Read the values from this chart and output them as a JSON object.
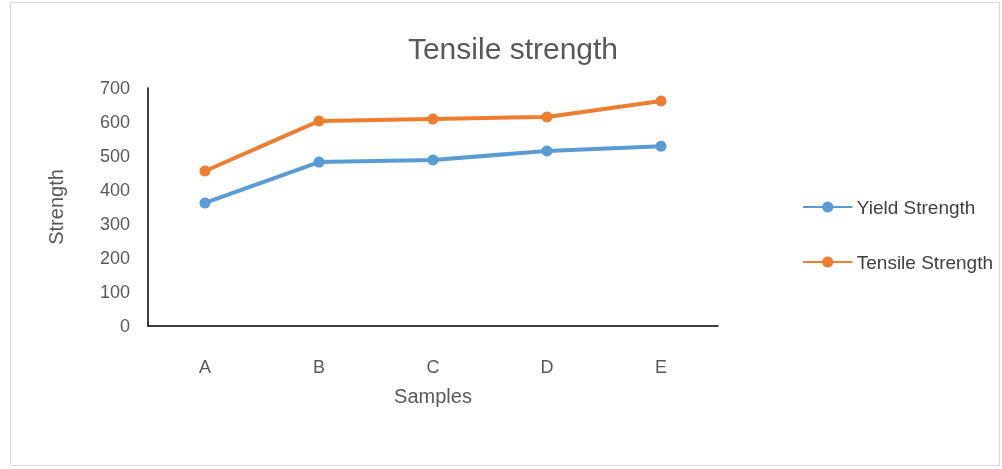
{
  "chart_data": {
    "type": "line",
    "title": "Tensile strength",
    "xlabel": "Samples",
    "ylabel": "Strength",
    "categories": [
      "A",
      "B",
      "C",
      "D",
      "E"
    ],
    "series": [
      {
        "name": "Yield Strength",
        "color": "#5b9bd5",
        "values": [
          362,
          482,
          488,
          515,
          529
        ]
      },
      {
        "name": "Tensile Strength",
        "color": "#ed7d31",
        "values": [
          456,
          603,
          609,
          615,
          662
        ]
      }
    ],
    "ylim": [
      0,
      700
    ],
    "yticks": [
      0,
      100,
      200,
      300,
      400,
      500,
      600,
      700
    ],
    "grid": false,
    "legend": "right",
    "marker": "circle",
    "line_style": "solid"
  }
}
